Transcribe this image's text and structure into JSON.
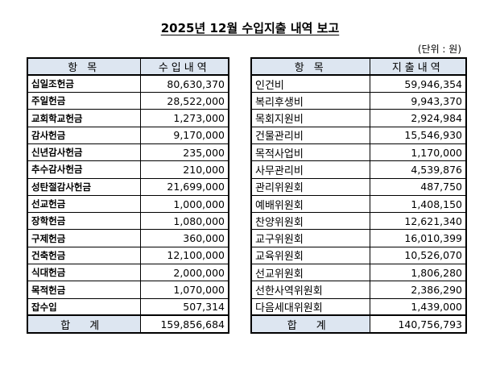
{
  "title": "2025년 12월 수입지출 내역 보고",
  "unit": "(단위 : 원)",
  "income": {
    "header_item": "항 목",
    "header_amount": "수입내역",
    "rows": [
      {
        "name": "십일조헌금",
        "amount": "80,630,370"
      },
      {
        "name": "주일헌금",
        "amount": "28,522,000"
      },
      {
        "name": "교회학교헌금",
        "amount": "1,273,000"
      },
      {
        "name": "감사헌금",
        "amount": "9,170,000"
      },
      {
        "name": "신년감사헌금",
        "amount": "235,000"
      },
      {
        "name": "추수감사헌금",
        "amount": "210,000"
      },
      {
        "name": "성탄절감사헌금",
        "amount": "21,699,000"
      },
      {
        "name": "선교헌금",
        "amount": "1,000,000"
      },
      {
        "name": "장학헌금",
        "amount": "1,080,000"
      },
      {
        "name": "구제헌금",
        "amount": "360,000"
      },
      {
        "name": "건축헌금",
        "amount": "12,100,000"
      },
      {
        "name": "식대헌금",
        "amount": "2,000,000"
      },
      {
        "name": "목적헌금",
        "amount": "1,070,000"
      },
      {
        "name": "잡수입",
        "amount": "507,314"
      }
    ],
    "total_label": "합 계",
    "total_amount": "159,856,684"
  },
  "expense": {
    "header_item": "항 목",
    "header_amount": "지출내역",
    "rows": [
      {
        "name": "인건비",
        "amount": "59,946,354"
      },
      {
        "name": "복리후생비",
        "amount": "9,943,370"
      },
      {
        "name": "목회지원비",
        "amount": "2,924,984"
      },
      {
        "name": "건물관리비",
        "amount": "15,546,930"
      },
      {
        "name": "목적사업비",
        "amount": "1,170,000"
      },
      {
        "name": "사무관리비",
        "amount": "4,539,876"
      },
      {
        "name": "관리위원회",
        "amount": "487,750"
      },
      {
        "name": "예배위원회",
        "amount": "1,408,150"
      },
      {
        "name": "찬양위원회",
        "amount": "12,621,340"
      },
      {
        "name": "교구위원회",
        "amount": "16,010,399"
      },
      {
        "name": "교육위원회",
        "amount": "10,526,070"
      },
      {
        "name": "선교위원회",
        "amount": "1,806,280"
      },
      {
        "name": "선한사역위원회",
        "amount": "2,386,290"
      },
      {
        "name": "다음세대위원회",
        "amount": "1,439,000"
      }
    ],
    "total_label": "합 계",
    "total_amount": "140,756,793"
  },
  "colors": {
    "header_background": "#dde6f1",
    "border": "#000000",
    "text": "#000000"
  }
}
